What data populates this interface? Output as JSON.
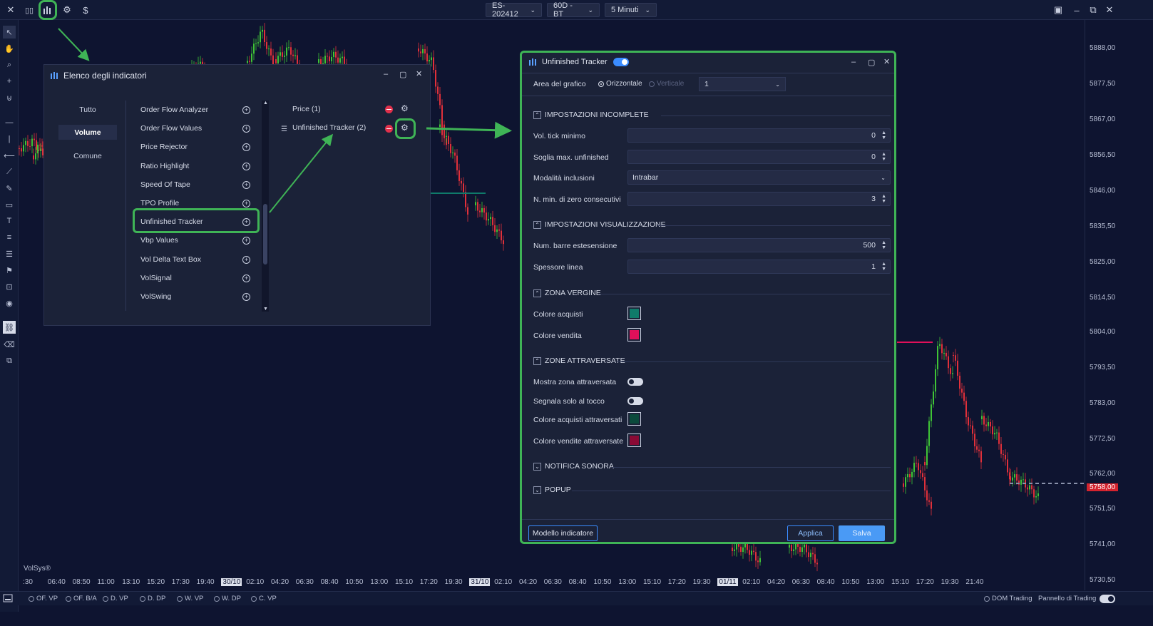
{
  "topbar": {
    "symbol": "ES-202412",
    "timeframe": "60D - BT",
    "interval": "5 Minuti"
  },
  "colors": {
    "accent": "#3fb456",
    "buy": "#0f7a6a",
    "sell": "#e0105a",
    "buy_crossed": "#0b4a3c",
    "sell_crossed": "#8a0a35",
    "up": "#3fc436",
    "down": "#e0303a"
  },
  "price_axis": [
    "5888,00",
    "5877,50",
    "5867,00",
    "5856,50",
    "5846,00",
    "5835,50",
    "5825,00",
    "5814,50",
    "5804,00",
    "5793,50",
    "5783,00",
    "5772,50",
    "5762,00",
    "5758,00",
    "5751,50",
    "5741,00",
    "5730,50"
  ],
  "time_axis": [
    ":30",
    "06:40",
    "08:50",
    "11:00",
    "13:10",
    "15:20",
    "17:30",
    "19:40",
    "30/10",
    "02:10",
    "04:20",
    "06:30",
    "08:40",
    "10:50",
    "13:00",
    "15:10",
    "17:20",
    "19:30",
    "31/10",
    "02:10",
    "04:20",
    "06:30",
    "08:40",
    "10:50",
    "13:00",
    "15:10",
    "17:20",
    "19:30",
    "01/11",
    "02:10",
    "04:20",
    "06:30",
    "08:40",
    "10:50",
    "13:00",
    "15:10",
    "17:20",
    "19:30",
    "21:40"
  ],
  "watermark": "VolSys®",
  "bottom": {
    "tags": [
      "OF. VP",
      "OF. B/A",
      "D. VP",
      "D. DP",
      "W. VP",
      "W. DP",
      "C. VP"
    ],
    "dom": "DOM Trading",
    "panel": "Pannello di Trading"
  },
  "indicators": {
    "title": "Elenco degli indicatori",
    "categories": [
      "Tutto",
      "Volume",
      "Comune"
    ],
    "items": [
      "Order Flow Analyzer",
      "Order Flow Values",
      "Price Rejector",
      "Ratio Highlight",
      "Speed Of Tape",
      "TPO Profile",
      "Unfinished Tracker",
      "Vbp Values",
      "Vol Delta Text Box",
      "VolSignal",
      "VolSwing"
    ],
    "active": [
      "Price (1)",
      "Unfinished Tracker (2)"
    ]
  },
  "settings": {
    "title": "Unfinished Tracker",
    "area_label": "Area del grafico",
    "orient_h": "Orizzontale",
    "orient_v": "Verticale",
    "area_value": "1",
    "sec1": "IMPOSTAZIONI INCOMPLETE",
    "f1": "Vol. tick minimo",
    "v1": "0",
    "f2": "Soglia max. unfinished",
    "v2": "0",
    "f3": "Modalità inclusioni",
    "v3": "Intrabar",
    "f4": "N. min. di zero consecutivi",
    "v4": "3",
    "sec2": "IMPOSTAZIONI VISUALIZZAZIONE",
    "f5": "Num. barre estesensione",
    "v5": "500",
    "f6": "Spessore linea",
    "v6": "1",
    "sec3": "ZONA VERGINE",
    "f7": "Colore acquisti",
    "f8": "Colore vendita",
    "sec4": "ZONE ATTRAVERSATE",
    "f9": "Mostra zona attraversata",
    "f10": "Segnala solo al tocco",
    "f11": "Colore acquisti attraversati",
    "f12": "Colore vendite attraversate",
    "sec5": "NOTIFICA SONORA",
    "sec6": "POPUP",
    "btn_model": "Modello indicatore",
    "btn_apply": "Applica",
    "btn_save": "Salva"
  }
}
